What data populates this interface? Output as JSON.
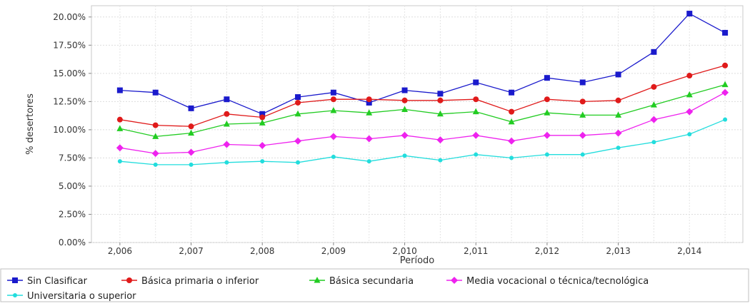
{
  "chart_data": {
    "type": "line",
    "title": "",
    "xlabel": "Período",
    "ylabel": "% desertores",
    "x": [
      2006,
      2006.5,
      2007,
      2007.5,
      2008,
      2008.5,
      2009,
      2009.5,
      2010,
      2010.5,
      2011,
      2011.5,
      2012,
      2012.5,
      2013,
      2013.5,
      2014,
      2014.5
    ],
    "x_tick_values": [
      2006,
      2007,
      2008,
      2009,
      2010,
      2011,
      2012,
      2013,
      2014
    ],
    "x_tick_labels": [
      "2,006",
      "2,007",
      "2,008",
      "2,009",
      "2,010",
      "2,011",
      "2,012",
      "2,013",
      "2,014"
    ],
    "xlim": [
      2005.6,
      2014.75
    ],
    "y_tick_values": [
      0,
      2.5,
      5,
      7.5,
      10,
      12.5,
      15,
      17.5,
      20
    ],
    "y_tick_labels": [
      "0.00%",
      "2.50%",
      "5.00%",
      "7.50%",
      "10.00%",
      "12.50%",
      "15.00%",
      "17.50%",
      "20.00%"
    ],
    "ylim": [
      0,
      21
    ],
    "grid": true,
    "legend_position": "bottom",
    "series": [
      {
        "name": "Sin Clasificar",
        "color": "#1a1acc",
        "marker": "square",
        "values": [
          13.5,
          13.3,
          11.9,
          12.7,
          11.4,
          12.9,
          13.3,
          12.4,
          13.5,
          13.2,
          14.2,
          13.3,
          14.6,
          14.2,
          14.9,
          16.9,
          20.3,
          18.6
        ]
      },
      {
        "name": "Básica primaria o inferior",
        "color": "#e01a1a",
        "marker": "circle",
        "values": [
          10.9,
          10.4,
          10.3,
          11.4,
          11.1,
          12.4,
          12.7,
          12.7,
          12.6,
          12.6,
          12.7,
          11.6,
          12.7,
          12.5,
          12.6,
          13.8,
          14.8,
          15.7
        ]
      },
      {
        "name": "Básica secundaria",
        "color": "#22cc22",
        "marker": "triangle",
        "values": [
          10.1,
          9.4,
          9.7,
          10.5,
          10.6,
          11.4,
          11.7,
          11.5,
          11.8,
          11.4,
          11.6,
          10.7,
          11.5,
          11.3,
          11.3,
          12.2,
          13.1,
          14.0
        ]
      },
      {
        "name": "Media vocacional o técnica/tecnológica",
        "color": "#ee22ee",
        "marker": "diamond",
        "values": [
          8.4,
          7.9,
          8.0,
          8.7,
          8.6,
          9.0,
          9.4,
          9.2,
          9.5,
          9.1,
          9.5,
          9.0,
          9.5,
          9.5,
          9.7,
          10.9,
          11.6,
          13.3
        ]
      },
      {
        "name": "Universitaria o superior",
        "color": "#22dddd",
        "marker": "circle-small",
        "values": [
          7.2,
          6.9,
          6.9,
          7.1,
          7.2,
          7.1,
          7.6,
          7.2,
          7.7,
          7.3,
          7.8,
          7.5,
          7.8,
          7.8,
          8.4,
          8.9,
          9.6,
          10.9
        ]
      }
    ]
  }
}
